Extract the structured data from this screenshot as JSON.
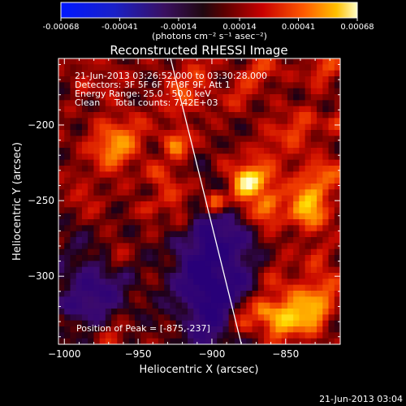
{
  "colorbar": {
    "ticks": [
      "-0.00068",
      "-0.00041",
      "-0.00014",
      "0.00014",
      "0.00041",
      "0.00068"
    ],
    "unit_label": "(photons cm⁻² s⁻¹ asec⁻²)",
    "range": [
      -0.00068,
      0.00068
    ]
  },
  "chart_data": {
    "type": "heatmap",
    "title": "Reconstructed RHESSI Image",
    "xlabel": "Heliocentric X (arcsec)",
    "ylabel": "Heliocentric Y (arcsec)",
    "xlim": [
      -1004,
      -813
    ],
    "ylim": [
      -345,
      -156
    ],
    "xticks": [
      {
        "v": -1000,
        "label": "−1000"
      },
      {
        "v": -950,
        "label": "−950"
      },
      {
        "v": -900,
        "label": "−900"
      },
      {
        "v": -850,
        "label": "−850"
      }
    ],
    "yticks": [
      {
        "v": -200,
        "label": "−200"
      },
      {
        "v": -250,
        "label": "−250"
      },
      {
        "v": -300,
        "label": "−300"
      }
    ],
    "peak": {
      "x": -875,
      "y": -237
    },
    "limb_line": [
      [
        -928,
        -156
      ],
      [
        -880,
        -345
      ]
    ],
    "annotations": {
      "time_range": "21-Jun-2013 03:26:52.000 to 03:30:28.000",
      "detectors": "Detectors: 3F 5F 6F 7F 8F 9F, Att 1",
      "energy": "Energy Range: 25.0 - 50.0 keV",
      "clean": "Clean     Total counts: 7.42E+03",
      "peak_text": "Position of Peak = [-875,-237]"
    }
  },
  "footer": {
    "timestamp": "21-Jun-2013 03:04"
  }
}
